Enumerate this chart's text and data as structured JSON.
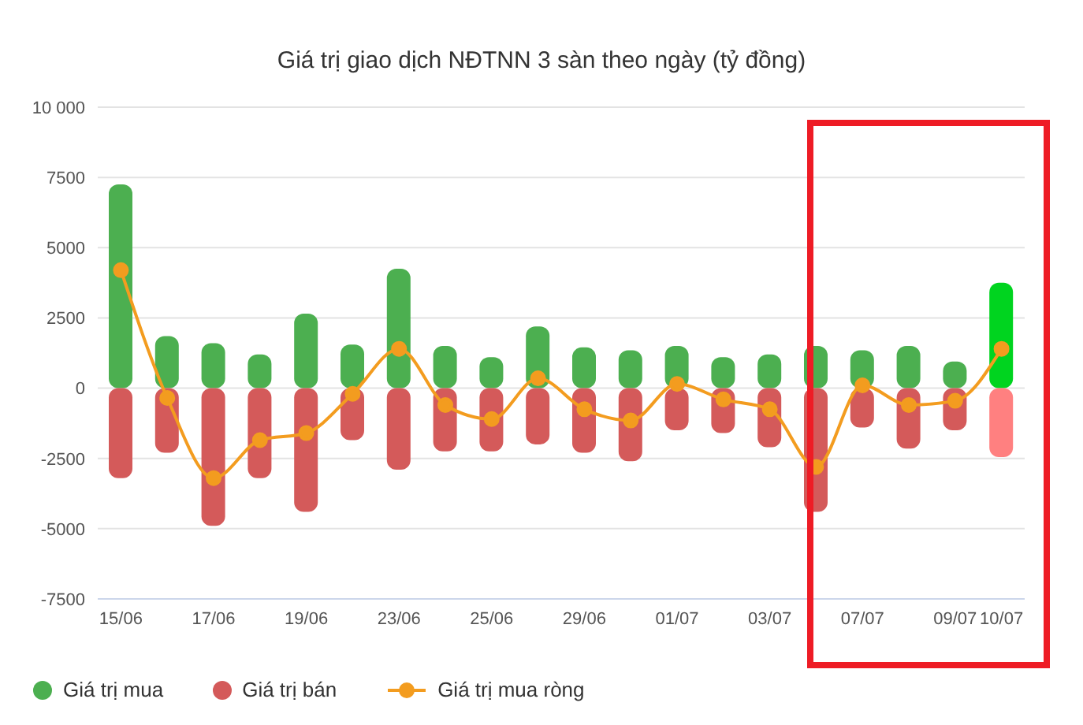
{
  "chart_data": {
    "type": "bar",
    "title": "Giá trị giao dịch NĐTNN 3 sàn theo ngày (tỷ đồng)",
    "categories": [
      "15/06",
      null,
      "17/06",
      null,
      "19/06",
      null,
      "23/06",
      null,
      "25/06",
      null,
      "29/06",
      null,
      "01/07",
      null,
      "03/07",
      null,
      "07/07",
      null,
      "09/07",
      "10/07"
    ],
    "series": [
      {
        "name": "Giá trị mua",
        "color": "#4caf50",
        "colors": [
          "#4caf50",
          "#4caf50",
          "#4caf50",
          "#4caf50",
          "#4caf50",
          "#4caf50",
          "#4caf50",
          "#4caf50",
          "#4caf50",
          "#4caf50",
          "#4caf50",
          "#4caf50",
          "#4caf50",
          "#4caf50",
          "#4caf50",
          "#4caf50",
          "#4caf50",
          "#4caf50",
          "#4caf50",
          "#00d41f"
        ],
        "values": [
          7250,
          1850,
          1600,
          1200,
          2650,
          1550,
          4250,
          1500,
          1100,
          2200,
          1450,
          1350,
          1500,
          1100,
          1200,
          1500,
          1350,
          1500,
          950,
          3750
        ]
      },
      {
        "name": "Giá trị bán",
        "color": "#d45a5a",
        "colors": [
          "#d45a5a",
          "#d45a5a",
          "#d45a5a",
          "#d45a5a",
          "#d45a5a",
          "#d45a5a",
          "#d45a5a",
          "#d45a5a",
          "#d45a5a",
          "#d45a5a",
          "#d45a5a",
          "#d45a5a",
          "#d45a5a",
          "#d45a5a",
          "#d45a5a",
          "#d45a5a",
          "#d45a5a",
          "#d45a5a",
          "#d45a5a",
          "#ff8080"
        ],
        "values": [
          -3200,
          -2300,
          -4900,
          -3200,
          -4400,
          -1850,
          -2900,
          -2250,
          -2250,
          -2000,
          -2300,
          -2600,
          -1500,
          -1600,
          -2100,
          -4400,
          -1400,
          -2150,
          -1500,
          -2450
        ]
      },
      {
        "name": "Giá trị mua ròng",
        "type": "line",
        "color": "#f39c1f",
        "values": [
          4200,
          -350,
          -3200,
          -1850,
          -1600,
          -200,
          1400,
          -600,
          -1100,
          350,
          -750,
          -1150,
          150,
          -400,
          -750,
          -2800,
          100,
          -600,
          -450,
          1400
        ]
      }
    ],
    "stacked": true,
    "ylim": [
      -7500,
      10000
    ],
    "yticks": [
      {
        "value": 10000,
        "label": "10 000"
      },
      7500,
      5000,
      2500,
      0,
      -2500,
      -5000,
      -7500
    ],
    "grid": "y",
    "legend": "bottom left",
    "marker": "circle",
    "line_style": "solid"
  }
}
